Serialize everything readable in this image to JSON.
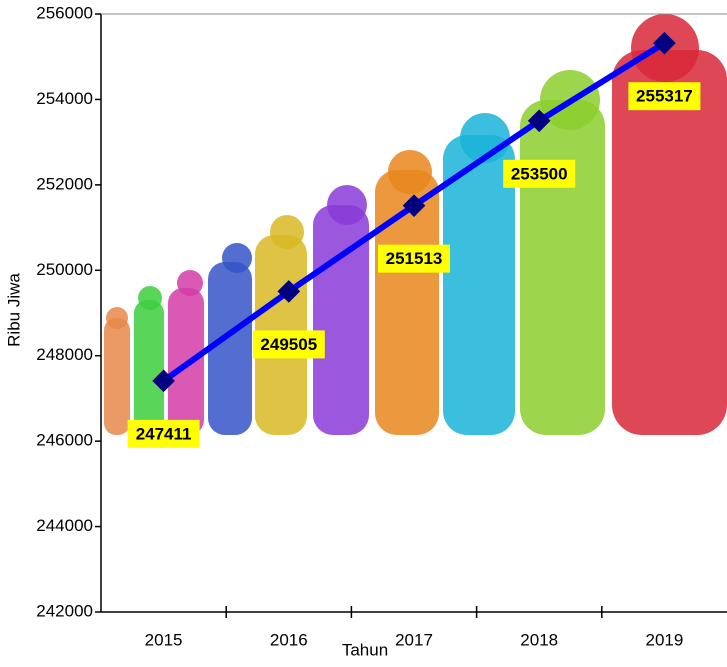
{
  "chart_data": {
    "type": "line",
    "x_label": "Tahun",
    "y_label": "Ribu Jiwa",
    "categories": [
      "2015",
      "2016",
      "2017",
      "2018",
      "2019"
    ],
    "values": [
      247411,
      249505,
      251513,
      253500,
      255317
    ],
    "color": "#0000ff",
    "marker_color": "#000080",
    "label_background": "#ffff00",
    "ylim": [
      242000,
      256000
    ],
    "yticks": [
      242000,
      244000,
      246000,
      248000,
      250000,
      252000,
      254000,
      256000
    ],
    "grid": false
  }
}
